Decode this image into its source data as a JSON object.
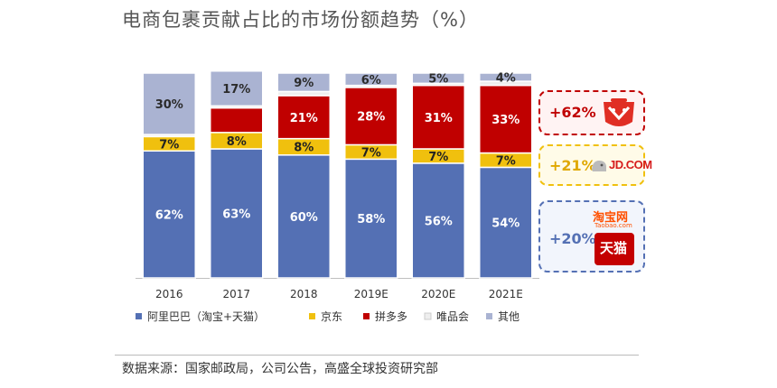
{
  "title": "电商包裹贡献占比的市场份额趋势（%）",
  "source": "数据来源：国家邮政局，公司公告，高盛全球投资研究部",
  "colors": {
    "alibaba": "#5470b4",
    "jd": "#f0c00e",
    "pdd": "#c00000",
    "vip": "#eeeeee",
    "other": "#aab3d2"
  },
  "callouts": [
    {
      "label": "+62%",
      "series": "拼多多",
      "color": "#c00000",
      "icon": "pinduoduo-logo"
    },
    {
      "label": "+21%",
      "series": "京东",
      "color": "#f0c00e",
      "icon": "jd-logo"
    },
    {
      "label": "+20%",
      "series": "阿里巴巴（淘宝+天猫）",
      "color": "#5470b4",
      "icon": "taobao-tmall-logo"
    }
  ],
  "logos": {
    "jd": "JD.COM",
    "taobao": "淘宝网",
    "taobao_sub": "Taobao.com",
    "tmall": "天猫"
  },
  "chart_data": {
    "type": "bar",
    "stacked": true,
    "categories": [
      "2016",
      "2017",
      "2018",
      "2019E",
      "2020E",
      "2021E"
    ],
    "ylim": [
      0,
      100
    ],
    "legend_position": "bottom",
    "series": [
      {
        "name": "阿里巴巴（淘宝+天猫）",
        "color": "#5470b4",
        "values": [
          62,
          63,
          60,
          58,
          56,
          54
        ],
        "labels": [
          "62%",
          "63%",
          "60%",
          "58%",
          "56%",
          "54%"
        ]
      },
      {
        "name": "京东",
        "color": "#f0c00e",
        "values": [
          7,
          8,
          8,
          7,
          7,
          7
        ],
        "labels": [
          "7%",
          "8%",
          "8%",
          "7%",
          "7%",
          "7%"
        ]
      },
      {
        "name": "拼多多",
        "color": "#c00000",
        "values": [
          0,
          12,
          21,
          28,
          31,
          33
        ],
        "labels": [
          "",
          "",
          "21%",
          "28%",
          "31%",
          "33%"
        ]
      },
      {
        "name": "唯品会",
        "color": "#eeeeee",
        "values": [
          1,
          1,
          2,
          1,
          1,
          2
        ],
        "labels": [
          "",
          "",
          "",
          "",
          "",
          ""
        ]
      },
      {
        "name": "其他",
        "color": "#aab3d2",
        "values": [
          30,
          17,
          9,
          6,
          5,
          4
        ],
        "labels": [
          "30%",
          "17%",
          "9%",
          "6%",
          "5%",
          "4%"
        ]
      }
    ]
  }
}
